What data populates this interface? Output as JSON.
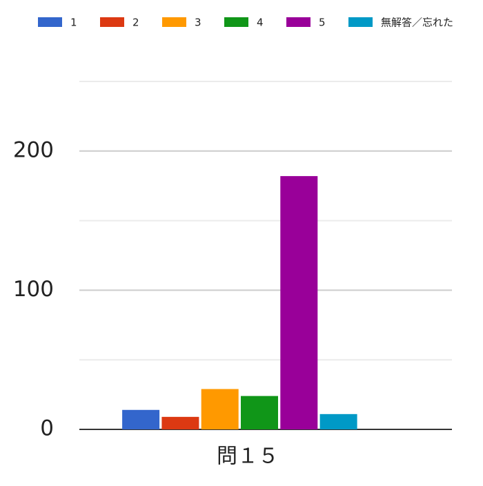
{
  "chart_data": {
    "type": "bar",
    "categories": [
      "問１５"
    ],
    "series": [
      {
        "name": "1",
        "color": "#3366cc",
        "values": [
          14
        ]
      },
      {
        "name": "2",
        "color": "#dc3912",
        "values": [
          9
        ]
      },
      {
        "name": "3",
        "color": "#ff9900",
        "values": [
          29
        ]
      },
      {
        "name": "4",
        "color": "#109618",
        "values": [
          24
        ]
      },
      {
        "name": "5",
        "color": "#990099",
        "values": [
          182
        ]
      },
      {
        "name": "無解答／忘れた",
        "color": "#0099c6",
        "values": [
          11
        ]
      }
    ],
    "ylim": [
      0,
      250
    ],
    "yticks": [
      0,
      100,
      200
    ],
    "minor_yticks": [
      50,
      150,
      250
    ],
    "grid": true,
    "legend": "top"
  }
}
